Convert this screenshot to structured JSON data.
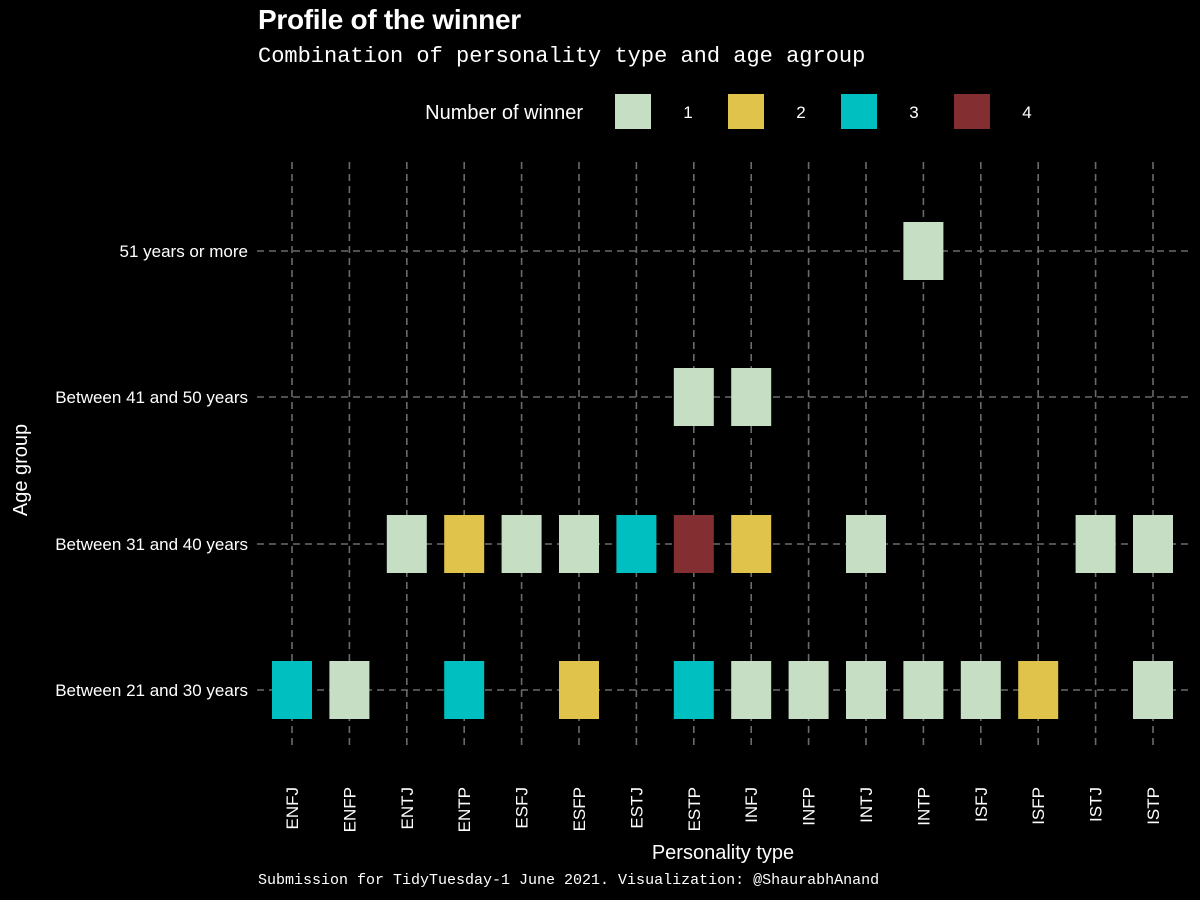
{
  "chart_data": {
    "type": "heatmap",
    "title": "Profile of the winner",
    "subtitle": "Combination of personality type and age agroup",
    "caption": "Submission for TidyTuesday-1 June 2021. Visualization: @ShaurabhAnand",
    "xlabel": "Personality type",
    "ylabel": "Age group",
    "x_categories": [
      "ENFJ",
      "ENFP",
      "ENTJ",
      "ENTP",
      "ESFJ",
      "ESFP",
      "ESTJ",
      "ESTP",
      "INFJ",
      "INFP",
      "INTJ",
      "INTP",
      "ISFJ",
      "ISFP",
      "ISTJ",
      "ISTP"
    ],
    "y_categories": [
      "Between 21 and 30 years",
      "Between 31 and 40 years",
      "Between 41 and 50 years",
      "51 years or more"
    ],
    "legend": {
      "title": "Number of winner",
      "position": "top",
      "levels": [
        {
          "value": 1,
          "label": "1",
          "color": "#c6dec3"
        },
        {
          "value": 2,
          "label": "2",
          "color": "#e0c34a"
        },
        {
          "value": 3,
          "label": "3",
          "color": "#00bfc1"
        },
        {
          "value": 4,
          "label": "4",
          "color": "#832f32"
        }
      ]
    },
    "grid": "dashed",
    "cells": [
      {
        "x": "ENFJ",
        "y": "Between 21 and 30 years",
        "value": 3
      },
      {
        "x": "ENFP",
        "y": "Between 21 and 30 years",
        "value": 1
      },
      {
        "x": "ENTP",
        "y": "Between 21 and 30 years",
        "value": 3
      },
      {
        "x": "ESFP",
        "y": "Between 21 and 30 years",
        "value": 2
      },
      {
        "x": "ESTP",
        "y": "Between 21 and 30 years",
        "value": 3
      },
      {
        "x": "INFJ",
        "y": "Between 21 and 30 years",
        "value": 1
      },
      {
        "x": "INFP",
        "y": "Between 21 and 30 years",
        "value": 1
      },
      {
        "x": "INTJ",
        "y": "Between 21 and 30 years",
        "value": 1
      },
      {
        "x": "INTP",
        "y": "Between 21 and 30 years",
        "value": 1
      },
      {
        "x": "ISFJ",
        "y": "Between 21 and 30 years",
        "value": 1
      },
      {
        "x": "ISFP",
        "y": "Between 21 and 30 years",
        "value": 2
      },
      {
        "x": "ISTP",
        "y": "Between 21 and 30 years",
        "value": 1
      },
      {
        "x": "ENTJ",
        "y": "Between 31 and 40 years",
        "value": 1
      },
      {
        "x": "ENTP",
        "y": "Between 31 and 40 years",
        "value": 2
      },
      {
        "x": "ESFJ",
        "y": "Between 31 and 40 years",
        "value": 1
      },
      {
        "x": "ESFP",
        "y": "Between 31 and 40 years",
        "value": 1
      },
      {
        "x": "ESTJ",
        "y": "Between 31 and 40 years",
        "value": 3
      },
      {
        "x": "ESTP",
        "y": "Between 31 and 40 years",
        "value": 4
      },
      {
        "x": "INFJ",
        "y": "Between 31 and 40 years",
        "value": 2
      },
      {
        "x": "INTJ",
        "y": "Between 31 and 40 years",
        "value": 1
      },
      {
        "x": "ISTJ",
        "y": "Between 31 and 40 years",
        "value": 1
      },
      {
        "x": "ISTP",
        "y": "Between 31 and 40 years",
        "value": 1
      },
      {
        "x": "ESTP",
        "y": "Between 41 and 50 years",
        "value": 1
      },
      {
        "x": "INFJ",
        "y": "Between 41 and 50 years",
        "value": 1
      },
      {
        "x": "INTP",
        "y": "51 years or more",
        "value": 1
      }
    ]
  }
}
